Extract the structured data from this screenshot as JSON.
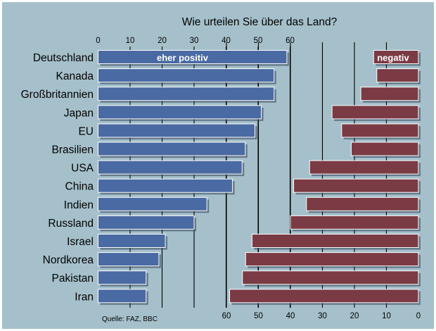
{
  "chart_data": {
    "type": "bar",
    "title": "Wie urteilen Sie über das Land?",
    "source": "Quelle: FAZ, BBC",
    "categories": [
      "Deutschland",
      "Kanada",
      "Großbritannien",
      "Japan",
      "EU",
      "Brasilien",
      "USA",
      "China",
      "Indien",
      "Russland",
      "Israel",
      "Nordkorea",
      "Pakistan",
      "Iran"
    ],
    "series": [
      {
        "name": "eher positiv",
        "values": [
          59,
          55,
          55,
          51,
          49,
          46,
          45,
          42,
          34,
          30,
          21,
          19,
          15,
          15
        ],
        "color": "#4a6aa3",
        "axis": "top"
      },
      {
        "name": "negativ",
        "values": [
          14,
          13,
          18,
          27,
          24,
          21,
          34,
          39,
          35,
          40,
          52,
          54,
          55,
          59
        ],
        "color": "#7b3b44",
        "axis": "bottom-reversed"
      }
    ],
    "top_axis_ticks": [
      "0",
      "10",
      "20",
      "30",
      "40",
      "50",
      "60"
    ],
    "bottom_axis_ticks": [
      "60",
      "50",
      "40",
      "30",
      "20",
      "10",
      "0"
    ],
    "xlim": [
      0,
      100
    ]
  },
  "colors": {
    "background": "#a5c0cb",
    "frame": "#ffffff",
    "gridline": "#000000",
    "positive": "#4a6aa3",
    "negative": "#7b3b44"
  }
}
